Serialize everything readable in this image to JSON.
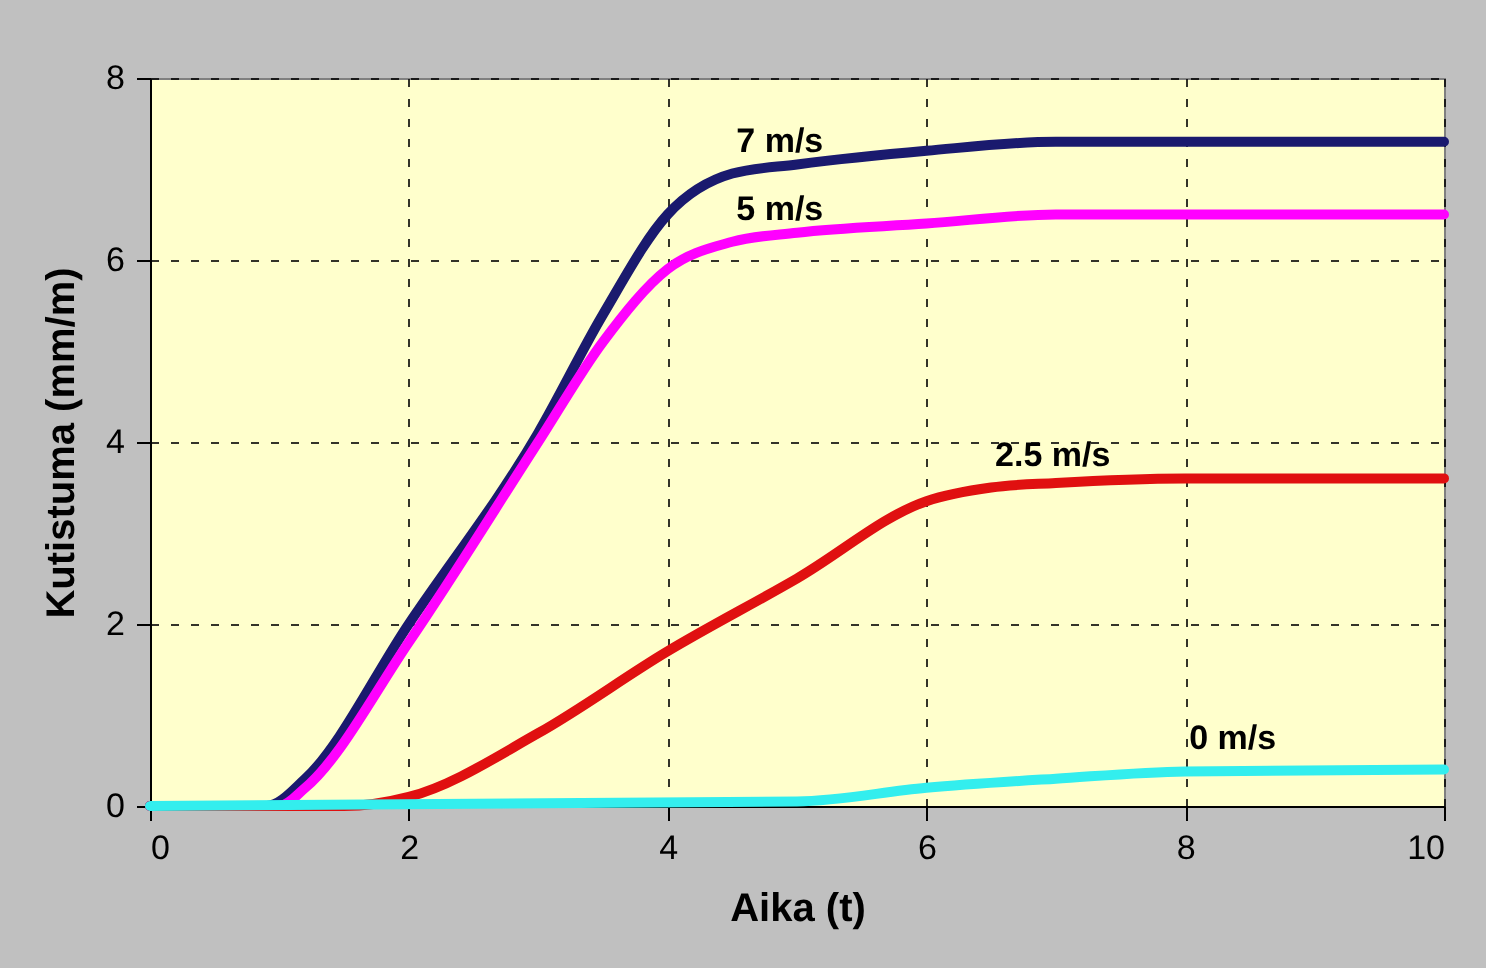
{
  "chart_data": {
    "type": "line",
    "xlabel": "Aika (t)",
    "ylabel": "Kutistuma (mm/m)",
    "xlim": [
      0,
      10
    ],
    "ylim": [
      0,
      8
    ],
    "xticks": [
      0,
      2,
      4,
      6,
      8,
      10
    ],
    "yticks": [
      0,
      2,
      4,
      6,
      8
    ],
    "grid": true,
    "marker": "none",
    "line_style": "solid",
    "series": [
      {
        "name": "7 m/s",
        "color": "#1a1a6e",
        "x": [
          0,
          0.9,
          1.2,
          2,
          3,
          3.5,
          4,
          4.5,
          5,
          6,
          7,
          8,
          10
        ],
        "values": [
          0,
          0,
          0.3,
          2.0,
          4.1,
          5.4,
          6.5,
          6.95,
          7.05,
          7.2,
          7.3,
          7.3,
          7.3
        ]
      },
      {
        "name": "5 m/s",
        "color": "#ff00ff",
        "x": [
          0,
          1,
          1.2,
          2,
          3,
          3.5,
          4,
          4.5,
          5,
          6,
          7,
          10
        ],
        "values": [
          0,
          0,
          0.2,
          1.8,
          4.0,
          5.1,
          5.9,
          6.2,
          6.3,
          6.4,
          6.5,
          6.5
        ]
      },
      {
        "name": "2.5 m/s",
        "color": "#e01010",
        "x": [
          0,
          1.5,
          2,
          3,
          4,
          5,
          6,
          6.5,
          7,
          8,
          10
        ],
        "values": [
          0,
          0,
          0.1,
          0.8,
          1.7,
          2.5,
          3.35,
          3.5,
          3.55,
          3.6,
          3.6
        ]
      },
      {
        "name": "0 m/s",
        "color": "#33eeee",
        "x": [
          0,
          5,
          6,
          7,
          8,
          10
        ],
        "values": [
          0,
          0.05,
          0.2,
          0.3,
          0.38,
          0.4
        ]
      }
    ]
  }
}
